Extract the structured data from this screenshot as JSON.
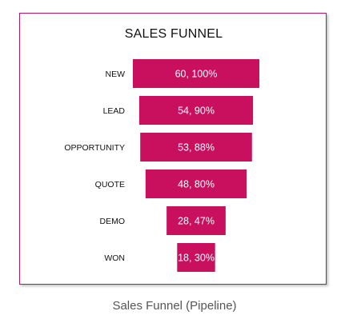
{
  "chart_data": {
    "type": "bar",
    "subtype": "funnel",
    "title": "SALES FUNNEL",
    "categories": [
      "NEW",
      "LEAD",
      "OPPORTUNITY",
      "QUOTE",
      "DEMO",
      "WON"
    ],
    "values": [
      60,
      54,
      53,
      48,
      28,
      18
    ],
    "percentages": [
      100,
      90,
      88,
      80,
      47,
      30
    ],
    "data_labels": [
      "60, 100%",
      "54, 90%",
      "53, 88%",
      "48, 80%",
      "28, 47%",
      "18, 30%"
    ],
    "xlabel": "",
    "ylabel": "",
    "grid": false,
    "legend": "none",
    "bar_color": "#c8105f"
  },
  "caption": "Sales Funnel (Pipeline)",
  "colors": {
    "bar": "#c8105f",
    "frame_border": "#b81868",
    "caption": "#555555"
  }
}
